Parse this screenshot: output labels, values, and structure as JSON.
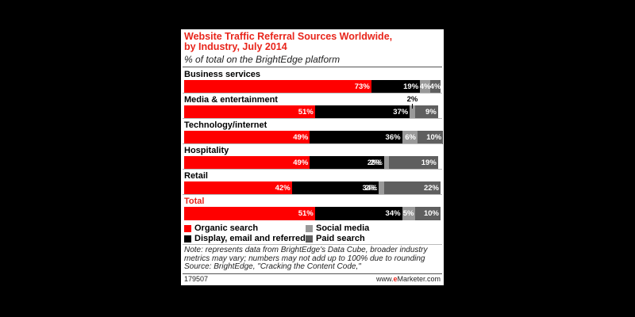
{
  "chart_data": {
    "type": "bar",
    "orientation": "horizontal",
    "stacked": true,
    "title_lines": [
      "Website Traffic Referral Sources Worldwide,",
      "by Industry, July 2014"
    ],
    "subtitle": "% of total on the BrightEdge platform",
    "categories": [
      "Business services",
      "Media & entertainment",
      "Technology/internet",
      "Hospitality",
      "Retail",
      "Total"
    ],
    "series": [
      {
        "name": "Organic search",
        "color": "#ff0000",
        "values": [
          73,
          51,
          49,
          49,
          42,
          51
        ]
      },
      {
        "name": "Display, email and referred",
        "color": "#000000",
        "values": [
          19,
          37,
          36,
          29,
          34,
          34
        ]
      },
      {
        "name": "Social media",
        "color": "#999999",
        "values": [
          4,
          2,
          6,
          2,
          2,
          5
        ]
      },
      {
        "name": "Paid search",
        "color": "#5f5f5f",
        "values": [
          4,
          9,
          10,
          19,
          22,
          10
        ]
      }
    ],
    "xlim": [
      0,
      100
    ],
    "legend": [
      {
        "label": "Organic search",
        "color": "#ff0000"
      },
      {
        "label": "Social media",
        "color": "#999999"
      },
      {
        "label": "Display, email and referred",
        "color": "#000000"
      },
      {
        "label": "Paid search",
        "color": "#5f5f5f"
      }
    ],
    "legend_placement": "bottom",
    "grid": false
  },
  "note": "Note: represents data from BrightEdge's Data Cube, broader industry metrics may vary; numbers may not add up to 100% due to rounding",
  "source": "Source: BrightEdge, \"Cracking the Content Code,\"",
  "footer": {
    "id": "179507",
    "brand_prefix": "www.",
    "brand_e": "e",
    "brand_rest": "Marketer.com"
  }
}
